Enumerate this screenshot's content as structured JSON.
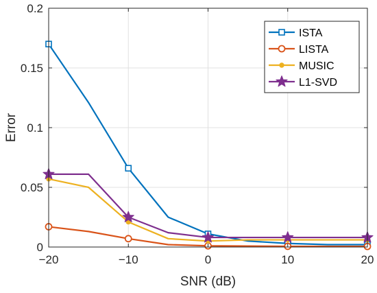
{
  "chart_data": {
    "type": "line",
    "xlabel": "SNR (dB)",
    "ylabel": "Error",
    "xlim": [
      -20,
      20
    ],
    "ylim": [
      0,
      0.2
    ],
    "xticks": [
      -20,
      -10,
      0,
      10,
      20
    ],
    "xtick_labels": [
      "−20",
      "−10",
      "0",
      "10",
      "20"
    ],
    "yticks": [
      0,
      0.05,
      0.1,
      0.15,
      0.2
    ],
    "ytick_labels": [
      "0",
      "0.05",
      "0.1",
      "0.15",
      "0.2"
    ],
    "grid": true,
    "legend_position": "top-right",
    "series": [
      {
        "name": "ISTA",
        "color": "#0072BD",
        "marker": "square",
        "x": [
          -20,
          -15,
          -10,
          -5,
          0,
          5,
          10,
          15,
          20
        ],
        "y": [
          0.17,
          0.121,
          0.066,
          0.025,
          0.011,
          0.005,
          0.003,
          0.002,
          0.002
        ],
        "marker_x": [
          -20,
          -10,
          0,
          10,
          20
        ],
        "marker_y": [
          0.17,
          0.066,
          0.011,
          0.003,
          0.002
        ]
      },
      {
        "name": "LISTA",
        "color": "#D95319",
        "marker": "circle",
        "x": [
          -20,
          -15,
          -10,
          -5,
          0,
          5,
          10,
          15,
          20
        ],
        "y": [
          0.017,
          0.013,
          0.007,
          0.002,
          0.001,
          0.0008,
          0.0006,
          0.0005,
          0.0005
        ],
        "marker_x": [
          -20,
          -10,
          0,
          10,
          20
        ],
        "marker_y": [
          0.017,
          0.007,
          0.001,
          0.0006,
          0.0005
        ]
      },
      {
        "name": "MUSIC",
        "color": "#EDB120",
        "marker": "dot",
        "x": [
          -20,
          -15,
          -10,
          -5,
          0,
          5,
          10,
          15,
          20
        ],
        "y": [
          0.057,
          0.05,
          0.021,
          0.007,
          0.005,
          0.006,
          0.006,
          0.006,
          0.006
        ],
        "marker_x": [
          -20,
          -10,
          0,
          10,
          20
        ],
        "marker_y": [
          0.057,
          0.021,
          0.005,
          0.006,
          0.006
        ]
      },
      {
        "name": "L1-SVD",
        "color": "#7E2F8E",
        "marker": "star",
        "x": [
          -20,
          -15,
          -10,
          -5,
          0,
          5,
          10,
          15,
          20
        ],
        "y": [
          0.061,
          0.061,
          0.025,
          0.012,
          0.008,
          0.008,
          0.008,
          0.008,
          0.008
        ],
        "marker_x": [
          -20,
          -10,
          0,
          10,
          20
        ],
        "marker_y": [
          0.061,
          0.025,
          0.008,
          0.008,
          0.008
        ]
      }
    ]
  }
}
